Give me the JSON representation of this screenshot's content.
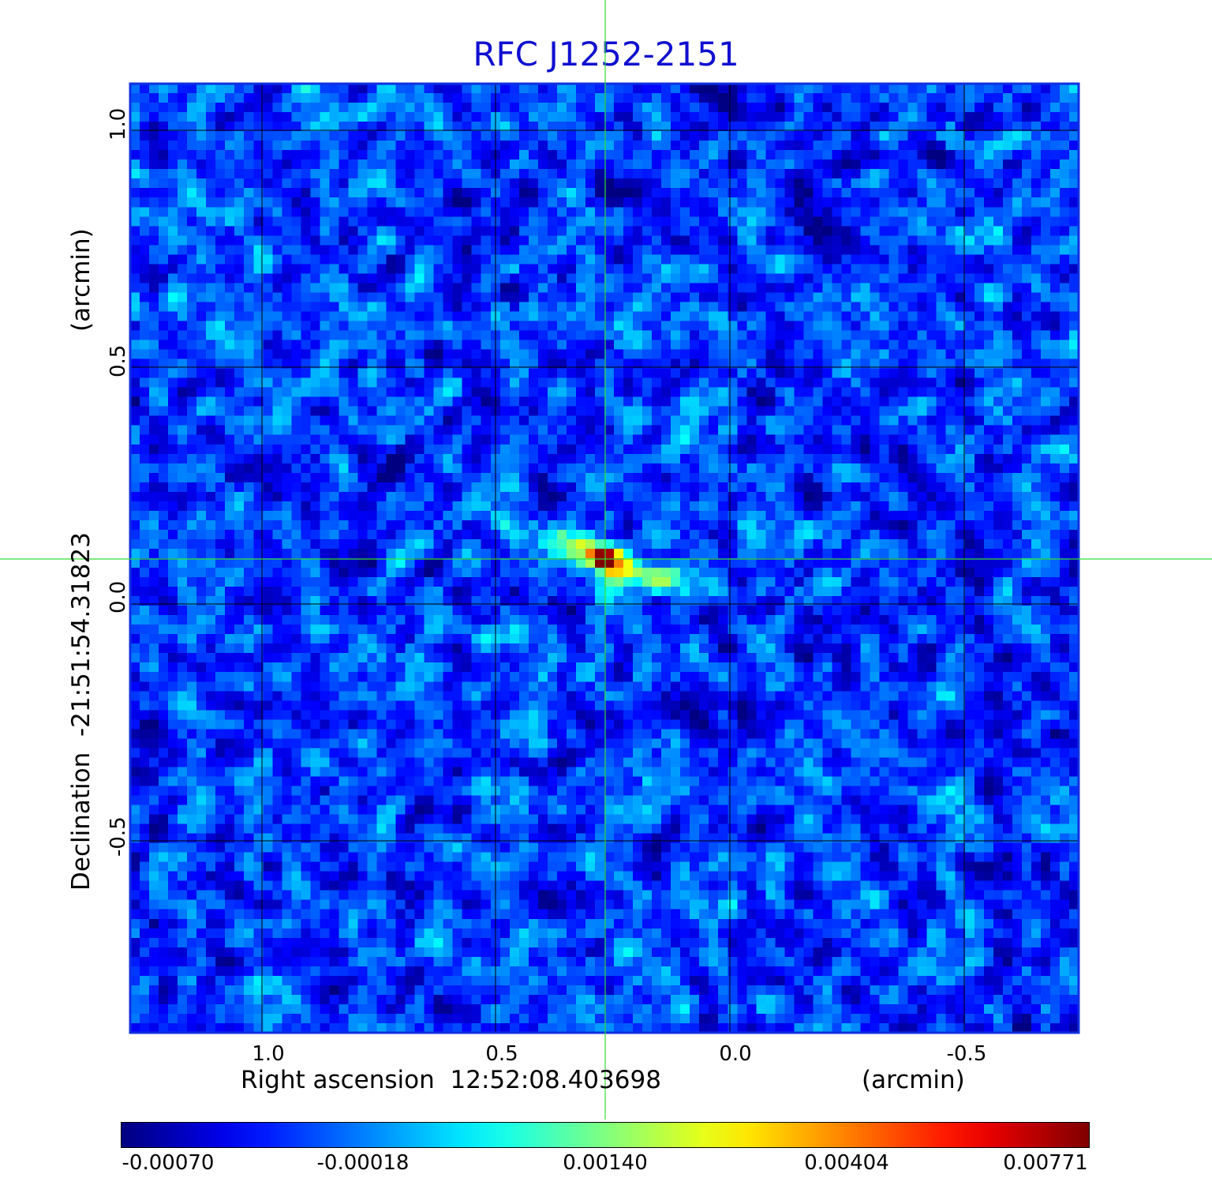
{
  "title": "RFC J1252-2151",
  "x_axis": {
    "label": "Right ascension",
    "center_value": "12:52:08.403698",
    "unit_label": "(arcmin)",
    "ticks": [
      "1.0",
      "0.5",
      "0.0",
      "-0.5"
    ]
  },
  "y_axis": {
    "label": "Declination",
    "center_value": "-21:51:54.31823",
    "unit_label": "(arcmin)",
    "ticks": [
      "1.0",
      "0.5",
      "0.0",
      "-0.5"
    ]
  },
  "colorbar": {
    "ticks": [
      "-0.00070",
      "-0.00018",
      "0.00140",
      "0.00404",
      "0.00771"
    ],
    "colormap": "jet"
  },
  "colors": {
    "title": "#1010d0",
    "crosshair": "#33dd33",
    "grid": "#000000",
    "frame": "#1030e0"
  }
}
